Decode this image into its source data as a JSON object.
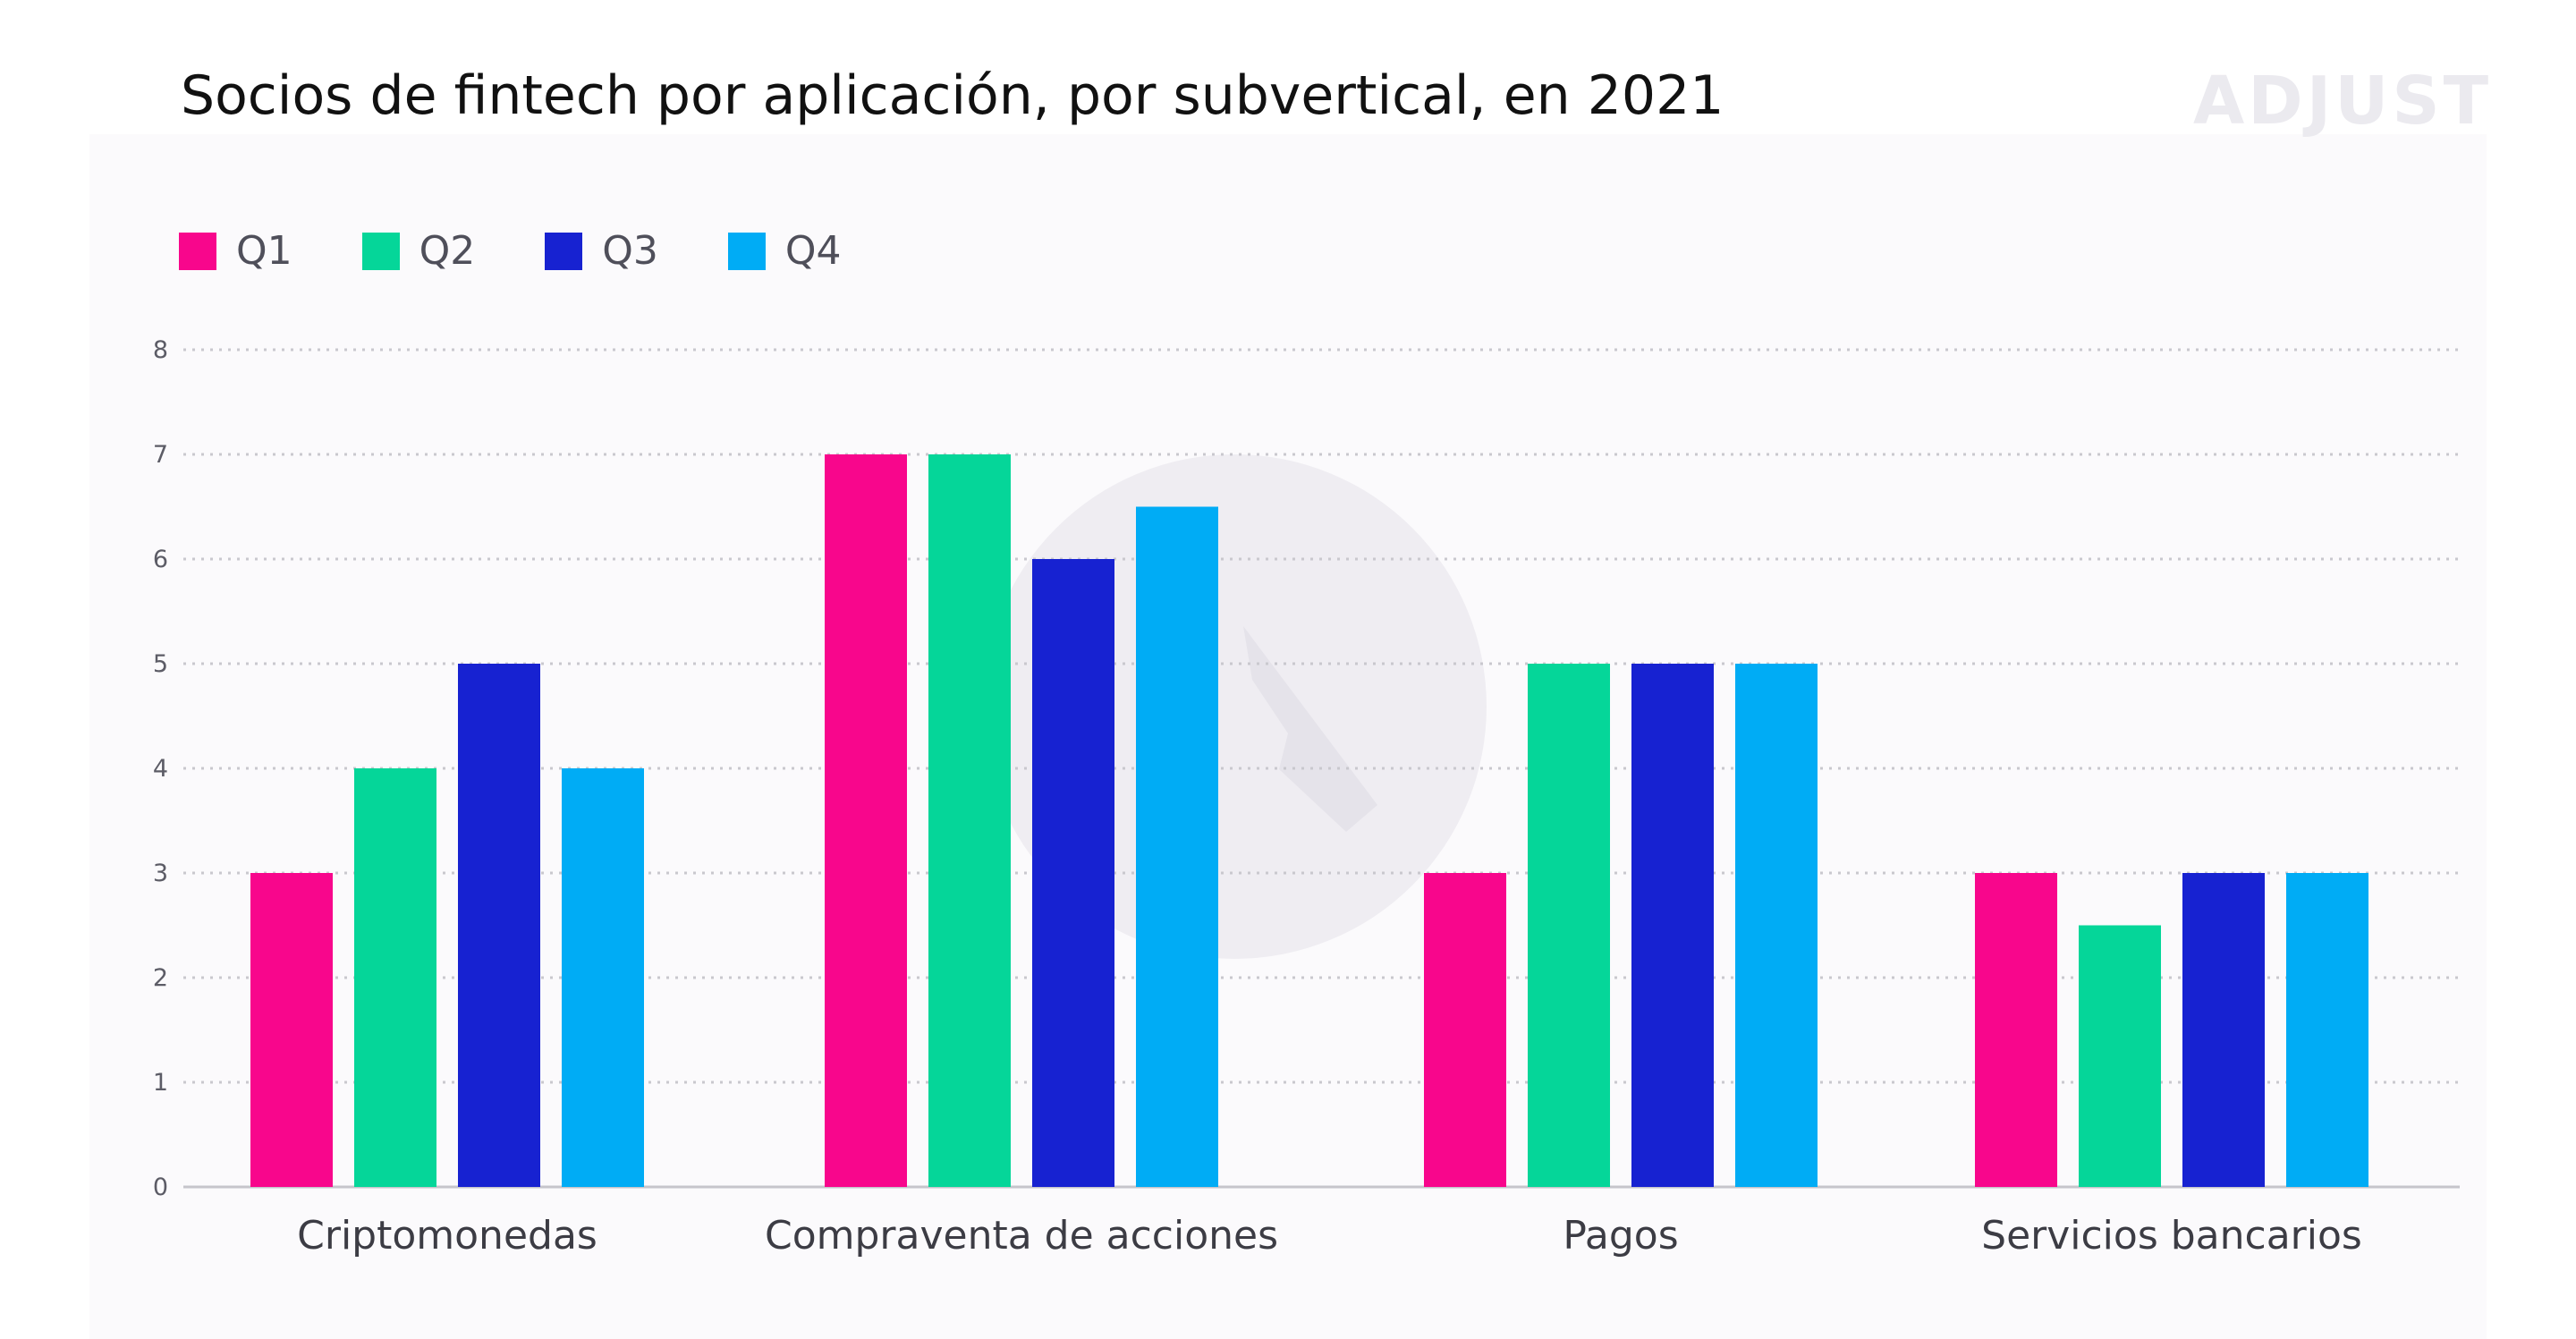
{
  "header": {
    "title": "Socios de fintech por aplicación, por subvertical, en 2021",
    "brand": "ADJUST"
  },
  "colors": {
    "Q1": "#f8068c",
    "Q2": "#05d699",
    "Q3": "#1722d1",
    "Q4": "#00acf5",
    "grid": "#c9c8ce",
    "axis_text": "#5c5c66",
    "category_text": "#3c3c44",
    "watermark": "#efedf2"
  },
  "chart_data": {
    "type": "bar",
    "title": "Socios de fintech por aplicación, por subvertical, en 2021",
    "xlabel": "",
    "ylabel": "",
    "categories": [
      "Criptomonedas",
      "Compraventa de acciones",
      "Pagos",
      "Servicios bancarios"
    ],
    "series": [
      {
        "name": "Q1",
        "values": [
          3,
          7,
          3,
          3
        ]
      },
      {
        "name": "Q2",
        "values": [
          4,
          7,
          5,
          2.5
        ]
      },
      {
        "name": "Q3",
        "values": [
          5,
          6,
          5,
          3
        ]
      },
      {
        "name": "Q4",
        "values": [
          4,
          6.5,
          5,
          3
        ]
      }
    ],
    "ylim": [
      0,
      8
    ],
    "yticks": [
      "0",
      "1",
      "2",
      "3",
      "4",
      "5",
      "6",
      "7",
      "8"
    ],
    "grid": true,
    "legend_position": "top-left"
  }
}
